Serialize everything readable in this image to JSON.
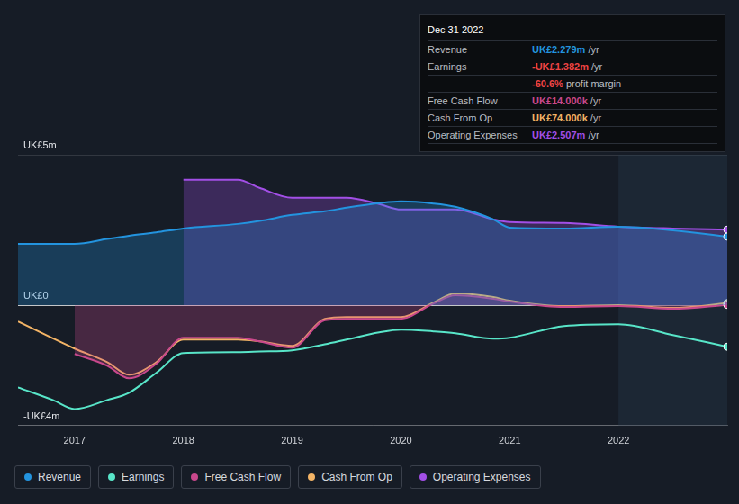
{
  "chart_data": {
    "type": "line",
    "x": [
      2016.48,
      2016.8,
      2017,
      2017.3,
      2017.5,
      2017.75,
      2018,
      2018.5,
      2018.7,
      2019,
      2019.3,
      2019.5,
      2019.8,
      2020,
      2020.3,
      2020.5,
      2020.85,
      2021,
      2021.5,
      2022,
      2022.5,
      2023
    ],
    "series": [
      {
        "name": "Revenue",
        "color": "#2394df",
        "type": "area",
        "values": [
          2.04,
          2.04,
          2.04,
          2.2,
          2.31,
          2.42,
          2.55,
          2.7,
          2.8,
          3.0,
          3.12,
          3.24,
          3.39,
          3.45,
          3.38,
          3.27,
          2.85,
          2.58,
          2.55,
          2.61,
          2.49,
          2.28
        ]
      },
      {
        "name": "Earnings",
        "color": "#58e5c8",
        "type": "line",
        "values": [
          -2.73,
          -3.15,
          -3.45,
          -3.15,
          -2.91,
          -2.25,
          -1.59,
          -1.56,
          -1.54,
          -1.5,
          -1.3,
          -1.14,
          -0.9,
          -0.81,
          -0.87,
          -0.93,
          -1.11,
          -1.08,
          -0.69,
          -0.63,
          -0.99,
          -1.38
        ]
      },
      {
        "name": "Free Cash Flow",
        "color": "#c8488c",
        "type": "area",
        "values": [
          null,
          null,
          -1.62,
          -2.01,
          -2.43,
          -1.95,
          -1.08,
          -1.08,
          -1.2,
          -1.41,
          -0.5,
          -0.45,
          -0.45,
          -0.45,
          0.06,
          0.33,
          0.21,
          0.12,
          -0.06,
          -0.03,
          -0.12,
          0.01
        ]
      },
      {
        "name": "Cash From Op",
        "color": "#f3b466",
        "type": "line",
        "values": [
          -0.54,
          -1.1,
          -1.44,
          -1.89,
          -2.31,
          -1.9,
          -1.14,
          -1.14,
          -1.2,
          -1.35,
          -0.45,
          -0.39,
          -0.39,
          -0.39,
          0.09,
          0.39,
          0.27,
          0.15,
          -0.03,
          0,
          -0.09,
          0.07
        ]
      },
      {
        "name": "Operating Expenses",
        "color": "#a24fe6",
        "type": "area",
        "values": [
          null,
          null,
          null,
          null,
          null,
          null,
          4.17,
          4.17,
          3.9,
          3.57,
          3.57,
          3.57,
          3.36,
          3.18,
          3.18,
          3.18,
          2.85,
          2.76,
          2.73,
          2.61,
          2.55,
          2.51
        ]
      }
    ],
    "xlim": [
      2016.48,
      2023
    ],
    "xticks": [
      2017,
      2018,
      2019,
      2020,
      2021,
      2022
    ],
    "ylim": [
      -4,
      5
    ],
    "yticks": [
      {
        "value": 5,
        "label": "UK£5m"
      },
      {
        "value": 0,
        "label": "UK£0"
      },
      {
        "value": -4,
        "label": "-UK£4m"
      }
    ],
    "grid": true,
    "legend": "bottom",
    "summary": {
      "date": "Dec 31 2022",
      "rows": [
        {
          "name": "Revenue",
          "value": "UK£2.279m",
          "unit": "/yr"
        },
        {
          "name": "Earnings",
          "value": "-UK£1.382m",
          "unit": "/yr"
        },
        {
          "name": "",
          "value": "-60.6%",
          "unit": "profit margin"
        },
        {
          "name": "Free Cash Flow",
          "value": "UK£14.000k",
          "unit": "/yr"
        },
        {
          "name": "Cash From Op",
          "value": "UK£74.000k",
          "unit": "/yr"
        },
        {
          "name": "Operating Expenses",
          "value": "UK£2.507m",
          "unit": "/yr"
        }
      ]
    }
  }
}
